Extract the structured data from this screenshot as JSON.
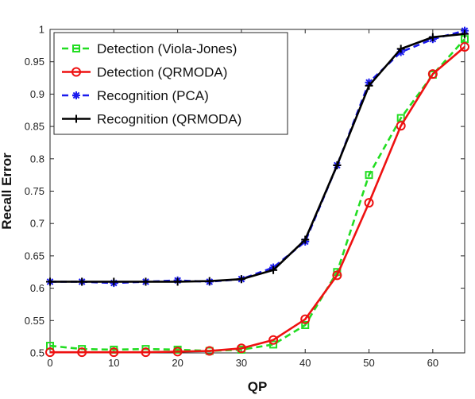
{
  "chart_data": {
    "type": "line",
    "xlabel": "QP",
    "ylabel": "Recall Error",
    "xlim": [
      0,
      65
    ],
    "ylim": [
      0.5,
      1
    ],
    "xticks": [
      0,
      10,
      20,
      30,
      40,
      50,
      60
    ],
    "yticks": [
      0.5,
      0.55,
      0.6,
      0.65,
      0.7,
      0.75,
      0.8,
      0.85,
      0.9,
      0.95,
      1
    ],
    "ytick_labels": [
      "0.5",
      "0.55",
      "0.6",
      "0.65",
      "0.7",
      "0.75",
      "0.8",
      "0.85",
      "0.9",
      "0.95",
      "1"
    ],
    "grid": false,
    "legend_position": "top-left",
    "x": [
      0,
      5,
      10,
      15,
      20,
      25,
      30,
      35,
      40,
      45,
      50,
      55,
      60,
      65
    ],
    "series": [
      {
        "name": "Detection (Viola-Jones)",
        "color": "#22dd22",
        "line_style": "dashed",
        "marker": "square",
        "values": [
          0.511,
          0.506,
          0.505,
          0.506,
          0.505,
          0.503,
          0.505,
          0.513,
          0.543,
          0.625,
          0.775,
          0.863,
          0.93,
          0.985
        ]
      },
      {
        "name": "Detection (QRMODA)",
        "color": "#ee1111",
        "line_style": "solid",
        "marker": "circle",
        "values": [
          0.501,
          0.501,
          0.501,
          0.501,
          0.502,
          0.503,
          0.507,
          0.52,
          0.552,
          0.62,
          0.732,
          0.851,
          0.931,
          0.973
        ]
      },
      {
        "name": "Recognition (PCA)",
        "color": "#1a1aee",
        "line_style": "dashed",
        "marker": "asterisk",
        "values": [
          0.61,
          0.61,
          0.608,
          0.61,
          0.612,
          0.61,
          0.614,
          0.632,
          0.672,
          0.79,
          0.918,
          0.965,
          0.985,
          0.998
        ]
      },
      {
        "name": "Recognition (QRMODA)",
        "color": "#000000",
        "line_style": "solid",
        "marker": "plus",
        "values": [
          0.61,
          0.61,
          0.61,
          0.61,
          0.61,
          0.611,
          0.614,
          0.628,
          0.675,
          0.79,
          0.913,
          0.97,
          0.988,
          0.993
        ]
      }
    ]
  }
}
